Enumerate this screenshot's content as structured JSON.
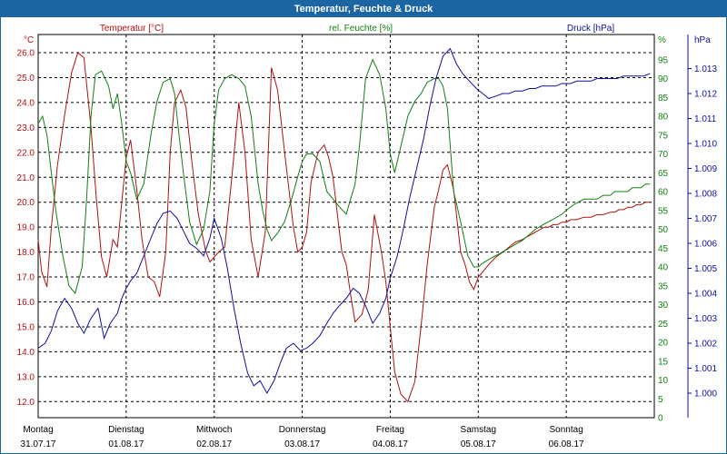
{
  "window": {
    "title": "Temperatur, Feuchte & Druck"
  },
  "colors": {
    "temperature": "#b01010",
    "humidity": "#108010",
    "pressure": "#1010a0",
    "title_bar": "#1b65a3"
  },
  "chart_data": {
    "type": "line",
    "title": "Temperatur, Feuchte & Druck",
    "grid": true,
    "x_start": "31.07.17",
    "x_end": "07.08.17",
    "xlim": [
      "31.07.17",
      "07.08.17"
    ],
    "x_ticks": [
      {
        "day": "Montag",
        "date": "31.07.17"
      },
      {
        "day": "Dienstag",
        "date": "01.08.17"
      },
      {
        "day": "Mittwoch",
        "date": "02.08.17"
      },
      {
        "day": "Donnerstag",
        "date": "03.08.17"
      },
      {
        "day": "Freitag",
        "date": "04.08.17"
      },
      {
        "day": "Samstag",
        "date": "05.08.17"
      },
      {
        "day": "Sonntag",
        "date": "06.08.17"
      }
    ],
    "axes": [
      {
        "id": "temp",
        "label": "Temperatur [°C]",
        "unit": "°C",
        "side": "left",
        "ylim": [
          11.5,
          26.5
        ],
        "ticks": [
          "26.0",
          "25.0",
          "24.0",
          "23.0",
          "22.0",
          "21.0",
          "20.0",
          "19.0",
          "18.0",
          "17.0",
          "16.0",
          "15.0",
          "14.0",
          "13.0",
          "12.0"
        ]
      },
      {
        "id": "hum",
        "label": "rel. Feuchte [%]",
        "unit": "%",
        "side": "right",
        "ylim": [
          0,
          100
        ],
        "ticks": [
          "95",
          "90",
          "85",
          "80",
          "75",
          "70",
          "65",
          "60",
          "55",
          "50",
          "45",
          "40",
          "35",
          "30",
          "25",
          "20",
          "15",
          "10",
          "5",
          "0"
        ]
      },
      {
        "id": "pres",
        "label": "Druck [hPa]",
        "unit": "hPa",
        "side": "right",
        "ylim": [
          998.8,
          1014.0
        ],
        "ticks": [
          "1.013",
          "1.012",
          "1.011",
          "1.010",
          "1.009",
          "1.008",
          "1.007",
          "1.006",
          "1.005",
          "1.004",
          "1.003",
          "1.002",
          "1.001",
          "1.000"
        ]
      }
    ],
    "series": [
      {
        "name": "Temperatur [°C]",
        "axis": "temp",
        "x": [
          0,
          0.04,
          0.1,
          0.15,
          0.22,
          0.3,
          0.38,
          0.45,
          0.52,
          0.6,
          0.66,
          0.72,
          0.78,
          0.85,
          0.9,
          0.95,
          1.0,
          1.05,
          1.12,
          1.18,
          1.25,
          1.32,
          1.38,
          1.45,
          1.5,
          1.55,
          1.62,
          1.68,
          1.75,
          1.82,
          1.9,
          1.95,
          2.0,
          2.05,
          2.12,
          2.2,
          2.28,
          2.35,
          2.42,
          2.5,
          2.58,
          2.65,
          2.72,
          2.8,
          2.85,
          2.9,
          2.95,
          3.0,
          3.05,
          3.1,
          3.18,
          3.25,
          3.3,
          3.35,
          3.4,
          3.45,
          3.5,
          3.55,
          3.6,
          3.68,
          3.75,
          3.82,
          3.9,
          3.95,
          4.0,
          4.05,
          4.12,
          4.2,
          4.28,
          4.35,
          4.42,
          4.5,
          4.55,
          4.6,
          4.65,
          4.72,
          4.8,
          4.85,
          4.9,
          4.95,
          5.0,
          5.05,
          5.12,
          5.2,
          5.28,
          5.35,
          5.42,
          5.5,
          5.55,
          5.6,
          5.65,
          5.7,
          5.75,
          5.8,
          5.85,
          5.9,
          5.95,
          6.0,
          6.05,
          6.12,
          6.2,
          6.28,
          6.35,
          6.42,
          6.5,
          6.55,
          6.6,
          6.65,
          6.7,
          6.75,
          6.8,
          6.85,
          6.9,
          6.95
        ],
        "values": [
          18.5,
          17.2,
          16.6,
          19.0,
          21.5,
          23.5,
          25.2,
          26.0,
          25.8,
          23.0,
          20.2,
          17.8,
          17.0,
          18.5,
          18.2,
          20.0,
          21.8,
          22.5,
          20.5,
          18.5,
          17.0,
          16.8,
          16.2,
          18.0,
          22.0,
          24.0,
          24.5,
          23.8,
          21.5,
          19.5,
          18.1,
          17.6,
          17.8,
          18.0,
          18.2,
          21.0,
          24.0,
          22.0,
          18.5,
          17.0,
          18.8,
          25.4,
          24.5,
          22.0,
          20.5,
          19.0,
          18.0,
          18.2,
          18.8,
          20.8,
          22.0,
          22.3,
          21.8,
          21.0,
          19.5,
          18.0,
          17.5,
          16.3,
          15.2,
          15.5,
          16.5,
          19.5,
          18.0,
          16.8,
          15.0,
          13.2,
          12.3,
          12.0,
          12.8,
          15.0,
          17.5,
          19.8,
          20.5,
          21.3,
          21.5,
          20.5,
          18.0,
          17.5,
          16.8,
          16.5,
          17.0,
          17.2,
          17.5,
          17.8,
          18.0,
          18.2,
          18.4,
          18.5,
          18.6,
          18.7,
          18.8,
          18.9,
          19.0,
          19.0,
          19.1,
          19.1,
          19.2,
          19.2,
          19.3,
          19.3,
          19.4,
          19.4,
          19.5,
          19.5,
          19.6,
          19.6,
          19.7,
          19.7,
          19.8,
          19.8,
          19.9,
          19.9,
          20.0,
          20.0
        ]
      },
      {
        "name": "rel. Feuchte [%]",
        "axis": "hum",
        "x": [
          0,
          0.05,
          0.1,
          0.15,
          0.2,
          0.28,
          0.35,
          0.42,
          0.5,
          0.55,
          0.6,
          0.65,
          0.72,
          0.8,
          0.85,
          0.9,
          0.95,
          1.0,
          1.05,
          1.12,
          1.2,
          1.28,
          1.35,
          1.42,
          1.5,
          1.55,
          1.6,
          1.65,
          1.72,
          1.8,
          1.88,
          1.95,
          2.0,
          2.05,
          2.12,
          2.2,
          2.28,
          2.35,
          2.42,
          2.5,
          2.55,
          2.6,
          2.65,
          2.72,
          2.8,
          2.88,
          2.95,
          3.0,
          3.05,
          3.12,
          3.2,
          3.28,
          3.35,
          3.42,
          3.5,
          3.55,
          3.6,
          3.65,
          3.72,
          3.8,
          3.88,
          3.95,
          4.0,
          4.05,
          4.12,
          4.2,
          4.28,
          4.35,
          4.42,
          4.5,
          4.55,
          4.6,
          4.65,
          4.72,
          4.8,
          4.88,
          4.95,
          5.0,
          5.05,
          5.12,
          5.2,
          5.28,
          5.35,
          5.42,
          5.5,
          5.55,
          5.6,
          5.65,
          5.72,
          5.8,
          5.88,
          5.95,
          6.0,
          6.05,
          6.12,
          6.2,
          6.28,
          6.35,
          6.42,
          6.5,
          6.55,
          6.6,
          6.65,
          6.7,
          6.75,
          6.8,
          6.85,
          6.9,
          6.95
        ],
        "values": [
          78,
          80,
          75,
          65,
          55,
          43,
          35,
          33,
          40,
          58,
          80,
          91,
          92,
          88,
          82,
          86,
          78,
          68,
          65,
          58,
          62,
          75,
          84,
          89,
          90,
          86,
          75,
          65,
          52,
          46,
          50,
          60,
          78,
          87,
          90,
          91,
          90,
          88,
          80,
          62,
          55,
          50,
          47,
          49,
          52,
          58,
          64,
          68,
          70,
          70,
          68,
          60,
          58,
          56,
          54,
          58,
          62,
          72,
          90,
          95,
          91,
          82,
          70,
          65,
          72,
          80,
          84,
          86,
          89,
          90,
          90,
          88,
          82,
          60,
          52,
          43,
          40,
          40,
          41,
          42,
          43,
          44,
          45,
          46,
          47,
          48,
          49,
          50,
          51,
          52,
          53,
          54,
          55,
          56,
          57,
          58,
          58,
          58,
          59,
          59,
          60,
          60,
          60,
          60,
          61,
          61,
          61,
          62,
          62
        ]
      },
      {
        "name": "Druck [hPa]",
        "axis": "pres",
        "x": [
          0,
          0.08,
          0.15,
          0.22,
          0.3,
          0.38,
          0.45,
          0.52,
          0.6,
          0.68,
          0.75,
          0.82,
          0.9,
          0.95,
          1.0,
          1.05,
          1.12,
          1.2,
          1.28,
          1.35,
          1.42,
          1.5,
          1.58,
          1.65,
          1.72,
          1.8,
          1.88,
          1.95,
          2.0,
          2.08,
          2.15,
          2.22,
          2.3,
          2.38,
          2.45,
          2.52,
          2.6,
          2.68,
          2.75,
          2.82,
          2.9,
          2.98,
          3.05,
          3.12,
          3.2,
          3.28,
          3.35,
          3.42,
          3.5,
          3.58,
          3.65,
          3.72,
          3.8,
          3.88,
          3.95,
          4.0,
          4.08,
          4.15,
          4.22,
          4.3,
          4.38,
          4.45,
          4.52,
          4.6,
          4.68,
          4.75,
          4.82,
          4.9,
          4.98,
          5.05,
          5.12,
          5.2,
          5.28,
          5.35,
          5.42,
          5.5,
          5.58,
          5.65,
          5.72,
          5.8,
          5.88,
          5.95,
          6.0,
          6.05,
          6.12,
          6.2,
          6.28,
          6.35,
          6.42,
          6.5,
          6.58,
          6.65,
          6.72,
          6.8,
          6.88,
          6.95
        ],
        "values": [
          1001.8,
          1002.0,
          1002.5,
          1003.3,
          1003.8,
          1003.4,
          1002.8,
          1002.4,
          1003.0,
          1003.4,
          1002.2,
          1002.8,
          1003.2,
          1003.8,
          1004.2,
          1004.5,
          1004.8,
          1005.5,
          1006.2,
          1006.8,
          1007.2,
          1007.3,
          1007.0,
          1006.5,
          1006.0,
          1005.8,
          1005.5,
          1006.2,
          1007.0,
          1006.2,
          1005.0,
          1003.5,
          1002.0,
          1000.8,
          1000.3,
          1000.5,
          1000.0,
          1000.5,
          1001.2,
          1001.8,
          1002.0,
          1001.7,
          1001.8,
          1002.0,
          1002.3,
          1002.8,
          1003.2,
          1003.5,
          1003.8,
          1004.2,
          1004.0,
          1003.5,
          1002.8,
          1003.2,
          1003.8,
          1004.6,
          1005.5,
          1006.6,
          1007.8,
          1009.0,
          1010.2,
          1011.5,
          1012.6,
          1013.5,
          1013.8,
          1013.2,
          1012.8,
          1012.5,
          1012.2,
          1012.0,
          1011.8,
          1011.9,
          1012.0,
          1012.0,
          1012.1,
          1012.1,
          1012.2,
          1012.2,
          1012.3,
          1012.3,
          1012.3,
          1012.4,
          1012.4,
          1012.4,
          1012.5,
          1012.5,
          1012.5,
          1012.6,
          1012.6,
          1012.6,
          1012.6,
          1012.7,
          1012.7,
          1012.7,
          1012.7,
          1012.8
        ]
      }
    ]
  }
}
